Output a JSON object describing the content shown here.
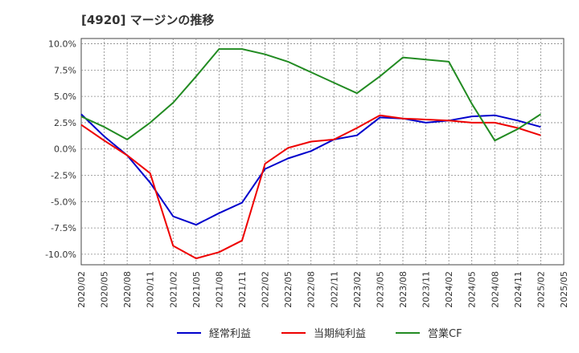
{
  "chart_data": {
    "type": "line",
    "title": "[4920]  マージンの推移",
    "xlabel": "",
    "ylabel": "",
    "x": [
      "2020/02",
      "2020/05",
      "2020/08",
      "2020/11",
      "2021/02",
      "2021/05",
      "2021/08",
      "2021/11",
      "2022/02",
      "2022/05",
      "2022/08",
      "2022/11",
      "2023/02",
      "2023/05",
      "2023/08",
      "2023/11",
      "2024/02",
      "2024/05",
      "2024/08",
      "2024/11",
      "2025/02",
      "2025/05"
    ],
    "ylim": [
      -11.0,
      10.5
    ],
    "yticks": [
      10.0,
      7.5,
      5.0,
      2.5,
      0.0,
      -2.5,
      -5.0,
      -7.5,
      -10.0
    ],
    "ytick_labels": [
      "10.0%",
      "7.5%",
      "5.0%",
      "2.5%",
      "0.0%",
      "-2.5%",
      "-5.0%",
      "-7.5%",
      "-10.0%"
    ],
    "grid": true,
    "legend_position": "bottom",
    "series": [
      {
        "name": "経常利益",
        "color": "#0000cc",
        "values": [
          3.3,
          1.2,
          -0.6,
          -3.2,
          -6.4,
          -7.2,
          -6.1,
          -5.1,
          -1.9,
          -0.9,
          -0.2,
          0.9,
          1.3,
          3.0,
          2.9,
          2.5,
          2.7,
          3.1,
          3.2,
          2.7,
          2.1,
          null
        ]
      },
      {
        "name": "当期純利益",
        "color": "#ee0000",
        "values": [
          2.3,
          0.8,
          -0.6,
          -2.3,
          -9.2,
          -10.4,
          -9.8,
          -8.7,
          -1.4,
          0.1,
          0.7,
          0.9,
          2.0,
          3.2,
          2.9,
          2.8,
          2.7,
          2.5,
          2.5,
          2.0,
          1.3,
          null
        ]
      },
      {
        "name": "営業CF",
        "color": "#228b22",
        "values": [
          3.1,
          2.1,
          0.9,
          2.5,
          4.4,
          6.9,
          9.5,
          9.5,
          9.0,
          8.3,
          7.3,
          6.3,
          5.3,
          6.9,
          8.7,
          8.5,
          8.3,
          4.3,
          0.8,
          1.9,
          3.3,
          null
        ]
      }
    ]
  }
}
